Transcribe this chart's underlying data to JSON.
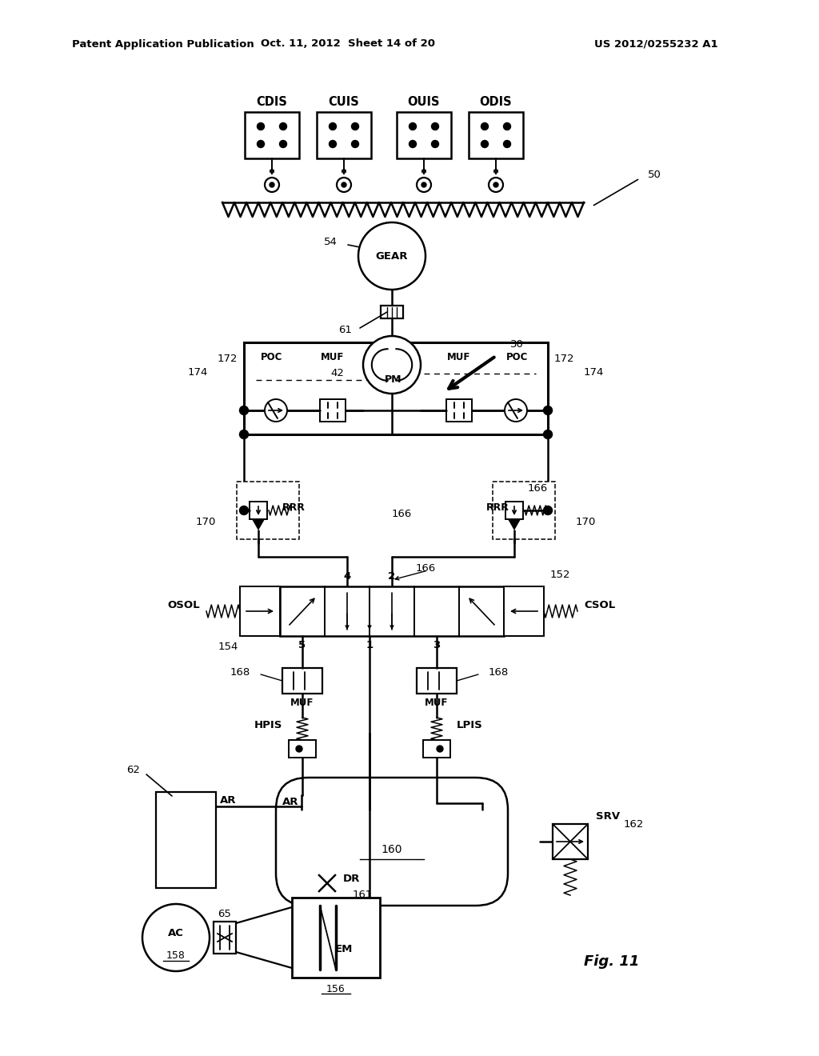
{
  "header_left": "Patent Application Publication",
  "header_mid": "Oct. 11, 2012  Sheet 14 of 20",
  "header_right": "US 2012/0255232 A1",
  "fig_label": "Fig. 11",
  "bg_color": "#ffffff"
}
